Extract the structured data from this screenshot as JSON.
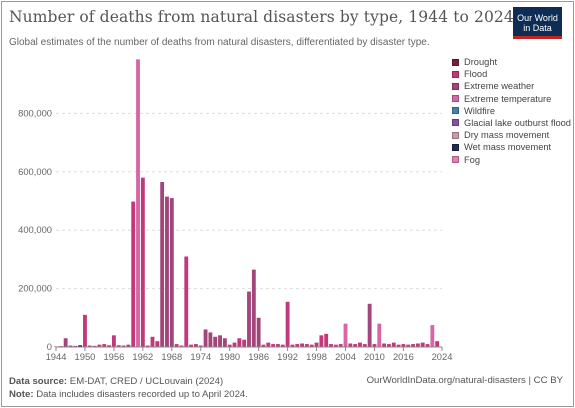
{
  "header": {
    "title": "Number of deaths from natural disasters by type, 1944 to 2024",
    "subtitle": "Global estimates of the number of deaths from natural disasters, differentiated by disaster type."
  },
  "logo": {
    "line1": "Our World",
    "line2": "in Data",
    "bg": "#0d2d55",
    "accent": "#c2271f"
  },
  "legend": [
    {
      "label": "Drought",
      "color": "#7a1e3e"
    },
    {
      "label": "Flood",
      "color": "#c2387a"
    },
    {
      "label": "Extreme weather",
      "color": "#a2457a"
    },
    {
      "label": "Extreme temperature",
      "color": "#d765a8"
    },
    {
      "label": "Wildfire",
      "color": "#4a7fa8"
    },
    {
      "label": "Glacial lake outburst flood",
      "color": "#8c4f9e"
    },
    {
      "label": "Dry mass movement",
      "color": "#c99aa8"
    },
    {
      "label": "Wet mass movement",
      "color": "#1f2a55"
    },
    {
      "label": "Fog",
      "color": "#e07fb0"
    }
  ],
  "footer": {
    "source_label": "Data source:",
    "source_text": "EM-DAT, CRED / UCLouvain (2024)",
    "note_label": "Note:",
    "note_text": "Data includes disasters recorded up to April 2024.",
    "right_text": "OurWorldInData.org/natural-disasters | CC BY"
  },
  "chart_data": {
    "type": "bar",
    "title": "Number of deaths from natural disasters by type, 1944 to 2024",
    "xlabel": "",
    "ylabel": "",
    "xlim": [
      1944,
      2024
    ],
    "ylim": [
      0,
      1000000
    ],
    "yticks": [
      0,
      200000,
      400000,
      600000,
      800000
    ],
    "ytick_labels": [
      "0",
      "200,000",
      "400,000",
      "600,000",
      "800,000"
    ],
    "xticks": [
      1944,
      1950,
      1956,
      1962,
      1968,
      1974,
      1980,
      1986,
      1992,
      1998,
      2004,
      2010,
      2016,
      2024
    ],
    "grid": true,
    "legend_position": "right",
    "bars": [
      {
        "x": 1944,
        "y": 2000,
        "color": "#c2387a"
      },
      {
        "x": 1945,
        "y": 3000,
        "color": "#c2387a"
      },
      {
        "x": 1946,
        "y": 30000,
        "color": "#a2457a"
      },
      {
        "x": 1947,
        "y": 5000,
        "color": "#c2387a"
      },
      {
        "x": 1948,
        "y": 4000,
        "color": "#c2387a"
      },
      {
        "x": 1949,
        "y": 6000,
        "color": "#1f2a55"
      },
      {
        "x": 1950,
        "y": 110000,
        "color": "#c2387a"
      },
      {
        "x": 1951,
        "y": 5000,
        "color": "#c2387a"
      },
      {
        "x": 1952,
        "y": 4000,
        "color": "#c2387a"
      },
      {
        "x": 1953,
        "y": 8000,
        "color": "#c2387a"
      },
      {
        "x": 1954,
        "y": 10000,
        "color": "#c2387a"
      },
      {
        "x": 1955,
        "y": 6000,
        "color": "#c2387a"
      },
      {
        "x": 1956,
        "y": 40000,
        "color": "#c2387a"
      },
      {
        "x": 1957,
        "y": 6000,
        "color": "#c2387a"
      },
      {
        "x": 1958,
        "y": 5000,
        "color": "#c2387a"
      },
      {
        "x": 1959,
        "y": 8000,
        "color": "#c2387a"
      },
      {
        "x": 1960,
        "y": 498000,
        "color": "#c2387a"
      },
      {
        "x": 1961,
        "y": 985000,
        "color": "#d765a8"
      },
      {
        "x": 1962,
        "y": 580000,
        "color": "#c2387a"
      },
      {
        "x": 1963,
        "y": 5000,
        "color": "#c2387a"
      },
      {
        "x": 1964,
        "y": 35000,
        "color": "#c2387a"
      },
      {
        "x": 1965,
        "y": 20000,
        "color": "#c2387a"
      },
      {
        "x": 1966,
        "y": 565000,
        "color": "#a2457a"
      },
      {
        "x": 1967,
        "y": 515000,
        "color": "#a2457a"
      },
      {
        "x": 1968,
        "y": 510000,
        "color": "#a2457a"
      },
      {
        "x": 1969,
        "y": 10000,
        "color": "#c2387a"
      },
      {
        "x": 1970,
        "y": 5000,
        "color": "#c2387a"
      },
      {
        "x": 1971,
        "y": 310000,
        "color": "#c2387a"
      },
      {
        "x": 1972,
        "y": 8000,
        "color": "#c2387a"
      },
      {
        "x": 1973,
        "y": 10000,
        "color": "#c2387a"
      },
      {
        "x": 1974,
        "y": 5000,
        "color": "#c2387a"
      },
      {
        "x": 1975,
        "y": 60000,
        "color": "#a2457a"
      },
      {
        "x": 1976,
        "y": 50000,
        "color": "#a2457a"
      },
      {
        "x": 1977,
        "y": 35000,
        "color": "#a2457a"
      },
      {
        "x": 1978,
        "y": 40000,
        "color": "#a2457a"
      },
      {
        "x": 1979,
        "y": 30000,
        "color": "#a2457a"
      },
      {
        "x": 1980,
        "y": 8000,
        "color": "#c2387a"
      },
      {
        "x": 1981,
        "y": 15000,
        "color": "#c2387a"
      },
      {
        "x": 1982,
        "y": 30000,
        "color": "#c2387a"
      },
      {
        "x": 1983,
        "y": 25000,
        "color": "#c2387a"
      },
      {
        "x": 1984,
        "y": 190000,
        "color": "#a2457a"
      },
      {
        "x": 1985,
        "y": 265000,
        "color": "#a2457a"
      },
      {
        "x": 1986,
        "y": 100000,
        "color": "#a2457a"
      },
      {
        "x": 1987,
        "y": 8000,
        "color": "#c2387a"
      },
      {
        "x": 1988,
        "y": 15000,
        "color": "#c2387a"
      },
      {
        "x": 1989,
        "y": 10000,
        "color": "#c2387a"
      },
      {
        "x": 1990,
        "y": 10000,
        "color": "#c2387a"
      },
      {
        "x": 1991,
        "y": 8000,
        "color": "#c2387a"
      },
      {
        "x": 1992,
        "y": 155000,
        "color": "#c2387a"
      },
      {
        "x": 1993,
        "y": 8000,
        "color": "#c2387a"
      },
      {
        "x": 1994,
        "y": 10000,
        "color": "#c2387a"
      },
      {
        "x": 1995,
        "y": 12000,
        "color": "#c2387a"
      },
      {
        "x": 1996,
        "y": 10000,
        "color": "#c2387a"
      },
      {
        "x": 1997,
        "y": 8000,
        "color": "#c2387a"
      },
      {
        "x": 1998,
        "y": 15000,
        "color": "#c2387a"
      },
      {
        "x": 1999,
        "y": 40000,
        "color": "#c2387a"
      },
      {
        "x": 2000,
        "y": 45000,
        "color": "#c2387a"
      },
      {
        "x": 2001,
        "y": 10000,
        "color": "#c2387a"
      },
      {
        "x": 2002,
        "y": 8000,
        "color": "#c2387a"
      },
      {
        "x": 2003,
        "y": 10000,
        "color": "#c2387a"
      },
      {
        "x": 2004,
        "y": 80000,
        "color": "#d765a8"
      },
      {
        "x": 2005,
        "y": 12000,
        "color": "#c2387a"
      },
      {
        "x": 2006,
        "y": 10000,
        "color": "#c2387a"
      },
      {
        "x": 2007,
        "y": 15000,
        "color": "#c2387a"
      },
      {
        "x": 2008,
        "y": 10000,
        "color": "#c2387a"
      },
      {
        "x": 2009,
        "y": 148000,
        "color": "#a2457a"
      },
      {
        "x": 2010,
        "y": 10000,
        "color": "#c2387a"
      },
      {
        "x": 2011,
        "y": 80000,
        "color": "#d765a8"
      },
      {
        "x": 2012,
        "y": 12000,
        "color": "#c2387a"
      },
      {
        "x": 2013,
        "y": 10000,
        "color": "#c2387a"
      },
      {
        "x": 2014,
        "y": 15000,
        "color": "#c2387a"
      },
      {
        "x": 2015,
        "y": 8000,
        "color": "#c2387a"
      },
      {
        "x": 2016,
        "y": 10000,
        "color": "#c2387a"
      },
      {
        "x": 2017,
        "y": 8000,
        "color": "#c2387a"
      },
      {
        "x": 2018,
        "y": 10000,
        "color": "#c2387a"
      },
      {
        "x": 2019,
        "y": 12000,
        "color": "#c2387a"
      },
      {
        "x": 2020,
        "y": 15000,
        "color": "#c2387a"
      },
      {
        "x": 2021,
        "y": 10000,
        "color": "#c2387a"
      },
      {
        "x": 2022,
        "y": 75000,
        "color": "#d765a8"
      },
      {
        "x": 2023,
        "y": 20000,
        "color": "#c2387a"
      }
    ]
  }
}
